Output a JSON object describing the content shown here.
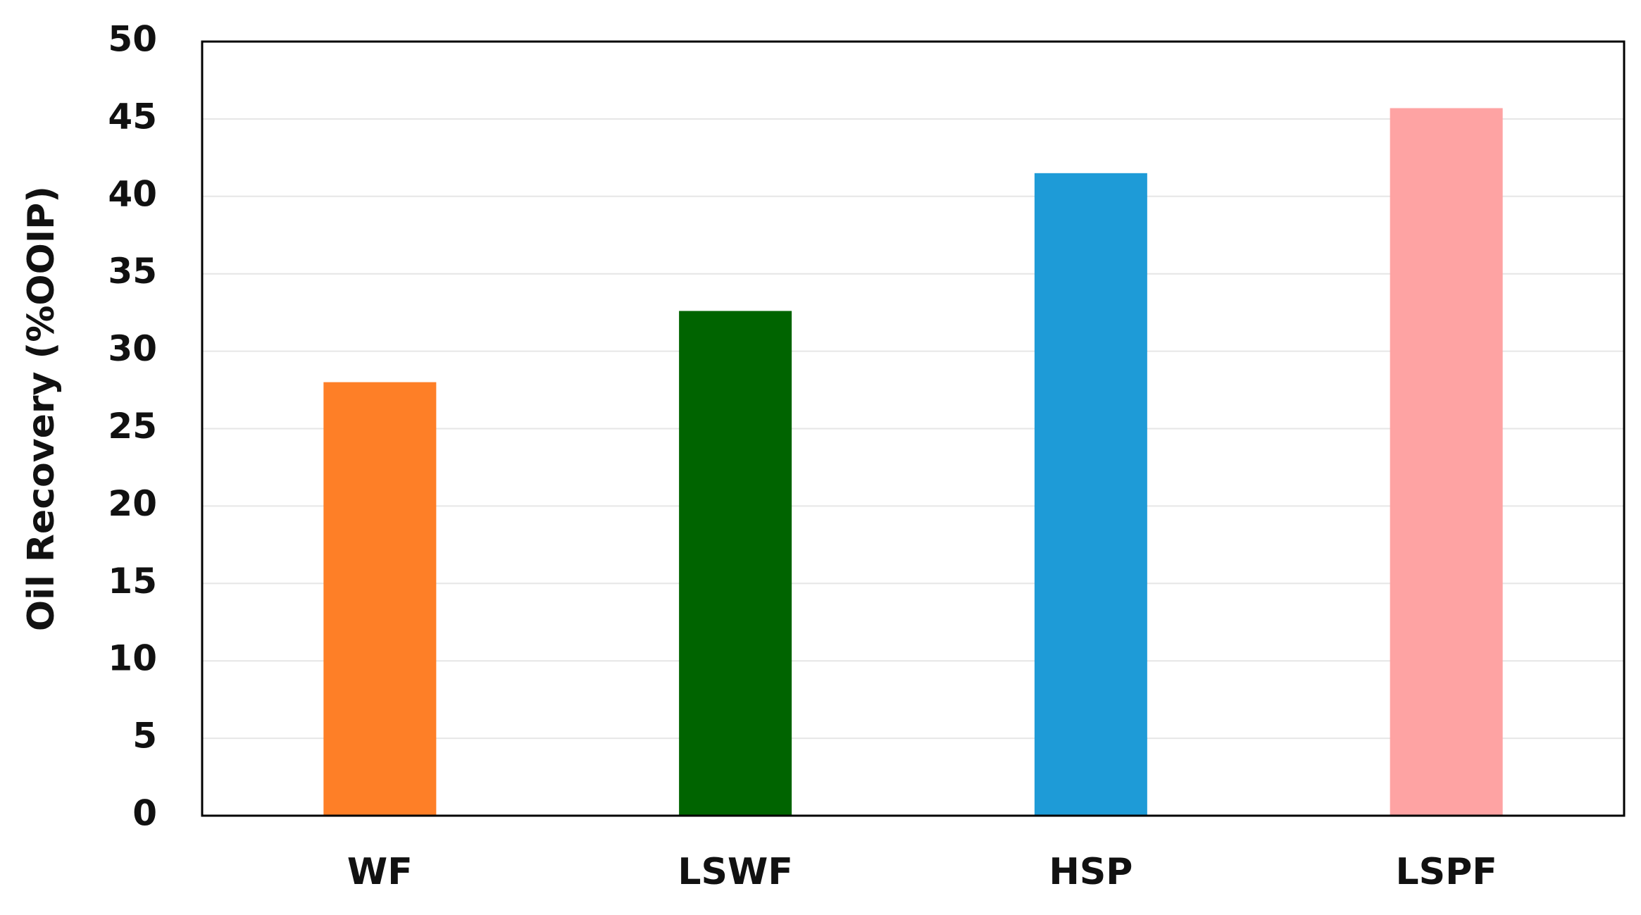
{
  "chart_data": {
    "type": "bar",
    "ylabel": "Oil Recovery (%OOIP)",
    "categories": [
      "WF",
      "LSWF",
      "HSP",
      "LSPF"
    ],
    "values": [
      28,
      32.6,
      41.5,
      45.7
    ],
    "colors": [
      "#fe7f27",
      "#006400",
      "#1e9bd7",
      "#fea3a3"
    ],
    "ylim": [
      0,
      50
    ],
    "yticks": [
      0,
      5,
      10,
      15,
      20,
      25,
      30,
      35,
      40,
      45,
      50
    ],
    "grid": true
  }
}
